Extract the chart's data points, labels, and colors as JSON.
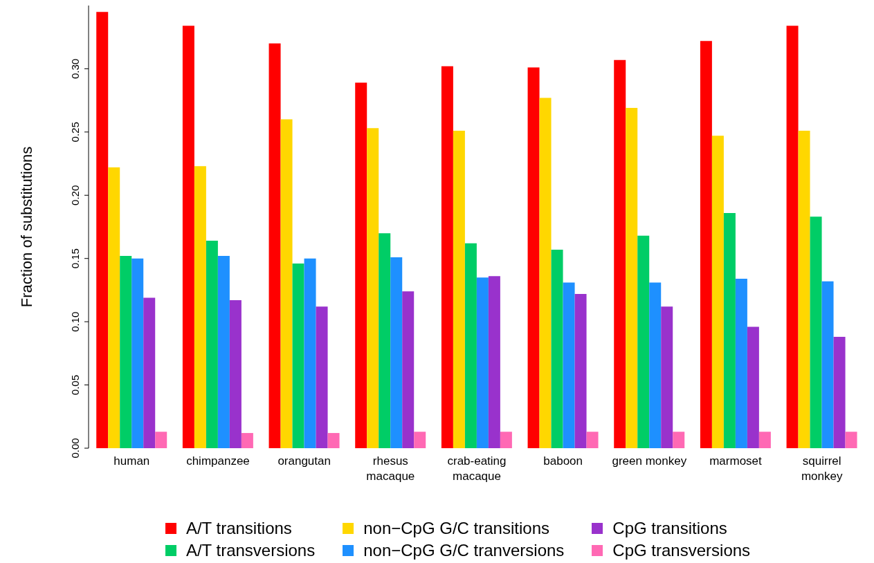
{
  "chart_data": {
    "type": "bar",
    "ylabel": "Fraction of substitutions",
    "categories": [
      "human",
      "chimpanzee",
      "orangutan",
      "rhesus\nmacaque",
      "crab-eating\nmacaque",
      "baboon",
      "green monkey",
      "marmoset",
      "squirrel\nmonkey"
    ],
    "series": [
      {
        "name": "A/T transitions",
        "color": "#ff0000",
        "values": [
          0.345,
          0.334,
          0.32,
          0.289,
          0.302,
          0.301,
          0.307,
          0.322,
          0.334
        ]
      },
      {
        "name": "non−CpG G/C transitions",
        "color": "#ffd700",
        "values": [
          0.222,
          0.223,
          0.26,
          0.253,
          0.251,
          0.277,
          0.269,
          0.247,
          0.251
        ]
      },
      {
        "name": "A/T transversions",
        "color": "#00cd66",
        "values": [
          0.152,
          0.164,
          0.146,
          0.17,
          0.162,
          0.157,
          0.168,
          0.186,
          0.183
        ]
      },
      {
        "name": "non−CpG G/C tranversions",
        "color": "#1e90ff",
        "values": [
          0.15,
          0.152,
          0.15,
          0.151,
          0.135,
          0.131,
          0.131,
          0.134,
          0.132
        ]
      },
      {
        "name": "CpG transitions",
        "color": "#9932cc",
        "values": [
          0.119,
          0.117,
          0.112,
          0.124,
          0.136,
          0.122,
          0.112,
          0.096,
          0.088
        ]
      },
      {
        "name": "CpG transversions",
        "color": "#ff69b4",
        "values": [
          0.013,
          0.012,
          0.012,
          0.013,
          0.013,
          0.013,
          0.013,
          0.013,
          0.013
        ]
      }
    ],
    "ylim": [
      0,
      0.35
    ],
    "yticks": [
      {
        "value": 0,
        "label": "0.00"
      },
      0.05,
      {
        "value": 0.1,
        "label": "0.10"
      },
      0.15,
      {
        "value": 0.2,
        "label": "0.20"
      },
      0.25,
      {
        "value": 0.3,
        "label": "0.30"
      }
    ],
    "grid": false,
    "legend": "bottom"
  }
}
